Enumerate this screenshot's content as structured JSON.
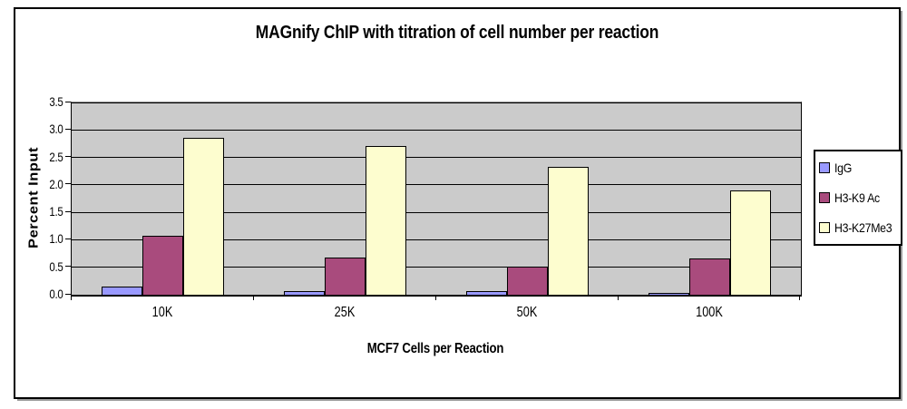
{
  "chart_data": {
    "type": "bar",
    "title": "MAGnify ChIP with titration of cell number per reaction",
    "xlabel": "MCF7 Cells per Reaction",
    "ylabel": "Percent Input",
    "categories": [
      "10K",
      "25K",
      "50K",
      "100K"
    ],
    "series": [
      {
        "name": "IgG",
        "color": "#9999FF",
        "values": [
          0.15,
          0.07,
          0.06,
          0.03
        ]
      },
      {
        "name": "H3-K9 Ac",
        "color": "#A94B7D",
        "values": [
          1.07,
          0.68,
          0.51,
          0.66
        ]
      },
      {
        "name": "H3-K27Me3",
        "color": "#FDFDCF",
        "values": [
          2.85,
          2.71,
          2.33,
          1.9
        ]
      }
    ],
    "ylim": [
      0,
      3.5
    ],
    "ytick_step": 0.5,
    "ytick_labels": [
      "0.0",
      "0.5",
      "1.0",
      "1.5",
      "2.0",
      "2.5",
      "3.0",
      "3.5"
    ],
    "grid": true,
    "legend_position": "right",
    "colors": {
      "plot_bg": "#CBCBCB",
      "gridline": "#000000",
      "bar_border": "#000000",
      "frame_border": "#000000",
      "background": "#FFFFFF"
    }
  }
}
